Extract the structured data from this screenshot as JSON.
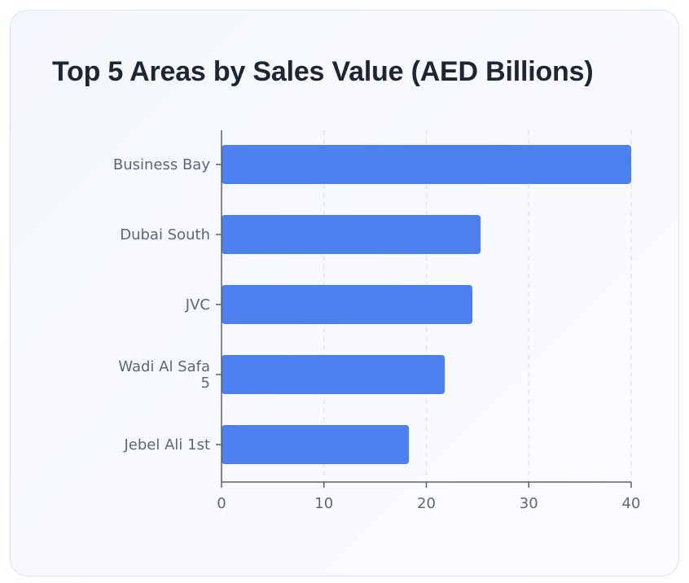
{
  "chart_data": {
    "type": "bar",
    "orientation": "horizontal",
    "title": "Top 5 Areas by Sales Value (AED Billions)",
    "categories": [
      "Business Bay",
      "Dubai South",
      "JVC",
      "Wadi Al Safa 5",
      "Jebel Ali 1st"
    ],
    "category_label_lines": [
      [
        "Business Bay"
      ],
      [
        "Dubai South"
      ],
      [
        "JVC"
      ],
      [
        "Wadi Al Safa",
        "5"
      ],
      [
        "Jebel Ali 1st"
      ]
    ],
    "values": [
      40,
      25.3,
      24.5,
      21.8,
      18.3
    ],
    "xlim": [
      0,
      40
    ],
    "xticks": [
      0,
      10,
      20,
      30,
      40
    ],
    "xlabel": "",
    "ylabel": "",
    "grid": "vertical dashed",
    "bar_color": "#4b80ee",
    "axis_color": "#5a606b",
    "grid_color": "#e1e4ea"
  }
}
